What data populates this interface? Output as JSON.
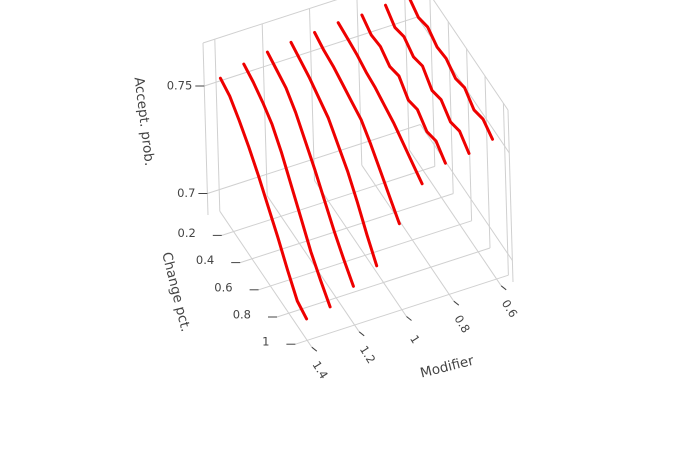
{
  "chart_data": {
    "type": "line3d",
    "xlabel": "Modifier",
    "ylabel": "Change pct.",
    "zlabel": "Accept. prob.",
    "x_ticks": [
      {
        "value": 1.4,
        "label": "1.4"
      },
      {
        "value": 1.2,
        "label": "1.2"
      },
      {
        "value": 1.0,
        "label": "1"
      },
      {
        "value": 0.8,
        "label": "0.8"
      },
      {
        "value": 0.6,
        "label": "0.6"
      }
    ],
    "y_ticks": [
      {
        "value": 1.0,
        "label": "1"
      },
      {
        "value": 0.8,
        "label": "0.8"
      },
      {
        "value": 0.6,
        "label": "0.6"
      },
      {
        "value": 0.4,
        "label": "0.4"
      },
      {
        "value": 0.2,
        "label": "0.2"
      }
    ],
    "z_ticks": [
      {
        "value": 0.7,
        "label": "0.7"
      },
      {
        "value": 0.75,
        "label": "0.75"
      }
    ],
    "line_color": "#ee0000",
    "series": [
      {
        "x": 1.4,
        "points": [
          [
            1.0,
            0.7
          ],
          [
            0.9,
            0.702
          ],
          [
            0.8,
            0.71
          ],
          [
            0.7,
            0.719
          ],
          [
            0.6,
            0.727
          ],
          [
            0.5,
            0.735
          ],
          [
            0.4,
            0.742
          ],
          [
            0.3,
            0.748
          ],
          [
            0.2,
            0.753
          ],
          [
            0.1,
            0.755
          ]
        ]
      },
      {
        "x": 1.3,
        "points": [
          [
            1.0,
            0.702
          ],
          [
            0.9,
            0.708
          ],
          [
            0.8,
            0.715
          ],
          [
            0.7,
            0.724
          ],
          [
            0.6,
            0.733
          ],
          [
            0.5,
            0.742
          ],
          [
            0.4,
            0.749
          ],
          [
            0.3,
            0.753
          ],
          [
            0.2,
            0.756
          ],
          [
            0.1,
            0.758
          ]
        ]
      },
      {
        "x": 1.2,
        "points": [
          [
            1.0,
            0.708
          ],
          [
            0.9,
            0.714
          ],
          [
            0.8,
            0.721
          ],
          [
            0.7,
            0.729
          ],
          [
            0.6,
            0.737
          ],
          [
            0.5,
            0.744
          ],
          [
            0.4,
            0.751
          ],
          [
            0.3,
            0.756
          ],
          [
            0.2,
            0.758
          ],
          [
            0.1,
            0.76
          ]
        ]
      },
      {
        "x": 1.1,
        "points": [
          [
            1.0,
            0.714
          ],
          [
            0.9,
            0.722
          ],
          [
            0.8,
            0.731
          ],
          [
            0.7,
            0.739
          ],
          [
            0.6,
            0.745
          ],
          [
            0.5,
            0.751
          ],
          [
            0.4,
            0.754
          ],
          [
            0.3,
            0.757
          ],
          [
            0.2,
            0.759
          ],
          [
            0.1,
            0.761
          ]
        ]
      },
      {
        "x": 1.0,
        "points": [
          [
            1.0,
            0.73
          ],
          [
            0.9,
            0.736
          ],
          [
            0.8,
            0.742
          ],
          [
            0.7,
            0.748
          ],
          [
            0.6,
            0.753
          ],
          [
            0.5,
            0.755
          ],
          [
            0.4,
            0.757
          ],
          [
            0.3,
            0.759
          ],
          [
            0.2,
            0.76
          ],
          [
            0.1,
            0.762
          ]
        ]
      },
      {
        "x": 0.9,
        "points": [
          [
            1.0,
            0.745
          ],
          [
            0.9,
            0.748
          ],
          [
            0.8,
            0.751
          ],
          [
            0.7,
            0.754
          ],
          [
            0.6,
            0.756
          ],
          [
            0.5,
            0.758
          ],
          [
            0.4,
            0.759
          ],
          [
            0.3,
            0.761
          ],
          [
            0.2,
            0.762
          ],
          [
            0.1,
            0.763
          ]
        ]
      },
      {
        "x": 0.8,
        "points": [
          [
            1.0,
            0.751
          ],
          [
            0.9,
            0.755
          ],
          [
            0.8,
            0.753
          ],
          [
            0.7,
            0.757
          ],
          [
            0.6,
            0.755
          ],
          [
            0.5,
            0.76
          ],
          [
            0.4,
            0.758
          ],
          [
            0.3,
            0.761
          ],
          [
            0.2,
            0.76
          ],
          [
            0.1,
            0.763
          ]
        ]
      },
      {
        "x": 0.7,
        "points": [
          [
            1.0,
            0.752
          ],
          [
            0.9,
            0.756
          ],
          [
            0.8,
            0.754
          ],
          [
            0.7,
            0.758
          ],
          [
            0.6,
            0.756
          ],
          [
            0.5,
            0.761
          ],
          [
            0.4,
            0.759
          ],
          [
            0.3,
            0.762
          ],
          [
            0.2,
            0.76
          ],
          [
            0.1,
            0.764
          ]
        ]
      },
      {
        "x": 0.6,
        "points": [
          [
            1.0,
            0.755
          ],
          [
            0.9,
            0.758
          ],
          [
            0.8,
            0.756
          ],
          [
            0.7,
            0.76
          ],
          [
            0.6,
            0.758
          ],
          [
            0.5,
            0.761
          ],
          [
            0.4,
            0.76
          ],
          [
            0.3,
            0.763
          ],
          [
            0.2,
            0.761
          ],
          [
            0.1,
            0.764
          ]
        ]
      }
    ]
  }
}
